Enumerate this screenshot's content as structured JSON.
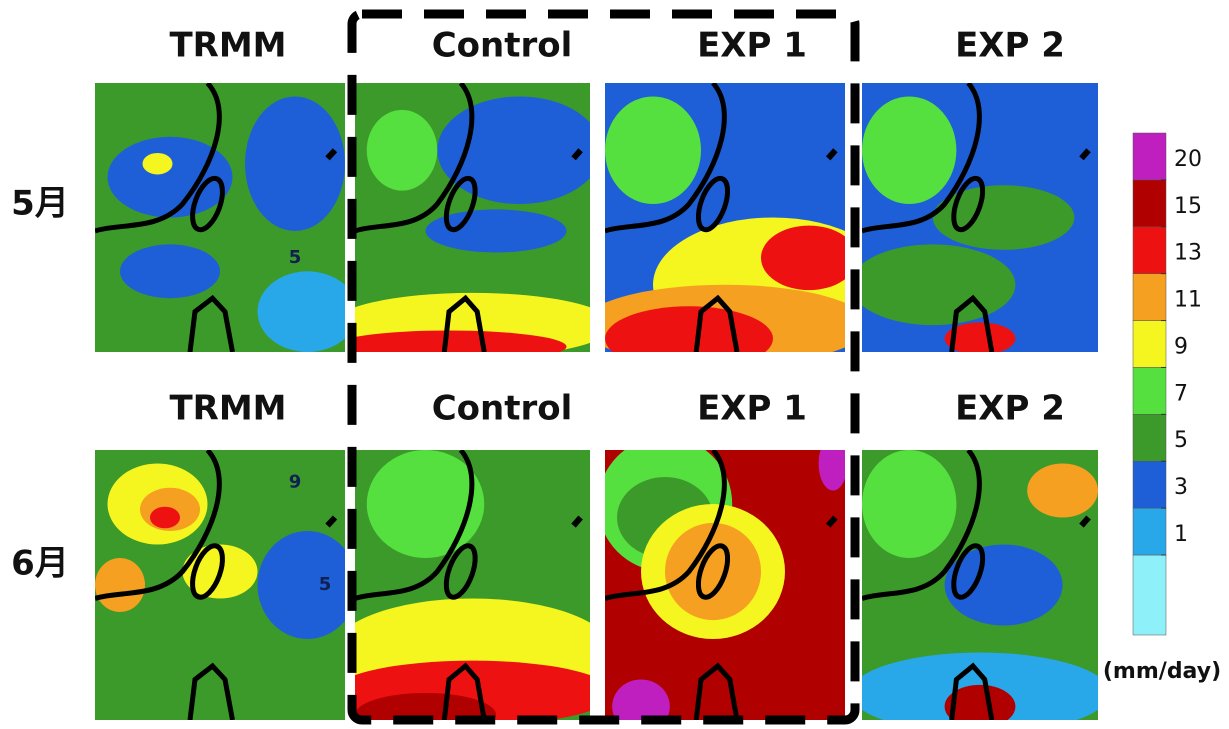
{
  "rows": [
    {
      "label": "5月",
      "panels": [
        "TRMM",
        "Control",
        "EXP 1",
        "EXP 2"
      ]
    },
    {
      "label": "6月",
      "panels": [
        "TRMM",
        "Control",
        "EXP 1",
        "EXP 2"
      ]
    }
  ],
  "annotations": [
    {
      "panel": "TRMM",
      "row": 0,
      "text": "5"
    },
    {
      "panel": "TRMM",
      "row": 1,
      "text": "9"
    },
    {
      "panel": "TRMM",
      "row": 1,
      "text": "5"
    }
  ],
  "colorbar": {
    "levels": [
      1,
      3,
      5,
      7,
      9,
      11,
      13,
      15,
      20
    ],
    "colors": [
      "#8ef0f8",
      "#28a8e8",
      "#1e5fd8",
      "#3c9a2a",
      "#55e040",
      "#f5f520",
      "#f5a020",
      "#ee1111",
      "#b00000",
      "#c01fc0"
    ],
    "unit": "(mm/day)"
  }
}
